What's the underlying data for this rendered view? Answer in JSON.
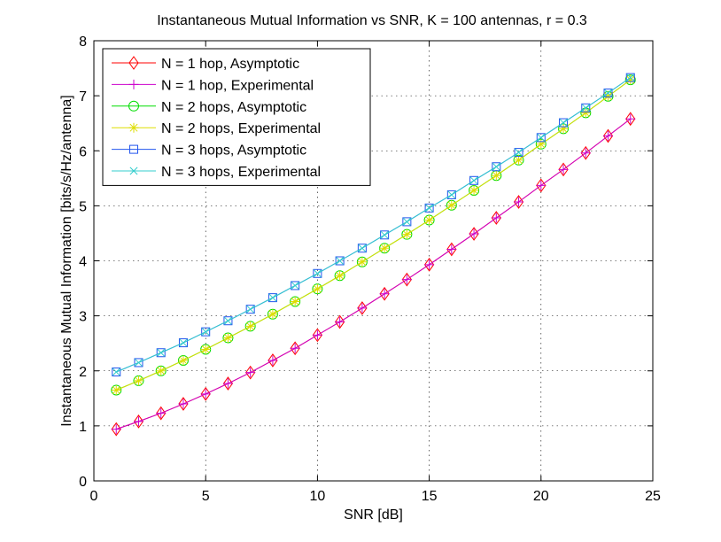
{
  "chart_data": {
    "type": "line",
    "title": "Instantaneous Mutual Information vs SNR, K = 100 antennas, r = 0.3",
    "xlabel": "SNR [dB]",
    "ylabel": "Instantaneous Mutual Information [bits/s/Hz/antenna]",
    "xlim": [
      0,
      25
    ],
    "ylim": [
      0,
      8
    ],
    "xticks": [
      0,
      5,
      10,
      15,
      20,
      25
    ],
    "yticks": [
      0,
      1,
      2,
      3,
      4,
      5,
      6,
      7,
      8
    ],
    "grid": true,
    "legend_position": "top-left",
    "x": [
      1,
      2,
      3,
      4,
      5,
      6,
      7,
      8,
      9,
      10,
      11,
      12,
      13,
      14,
      15,
      16,
      17,
      18,
      19,
      20,
      21,
      22,
      23,
      24
    ],
    "series": [
      {
        "name": "N = 1 hop, Asymptotic",
        "color": "#ff0000",
        "marker": "diamond",
        "values": [
          0.94,
          1.08,
          1.23,
          1.4,
          1.58,
          1.77,
          1.97,
          2.19,
          2.41,
          2.65,
          2.89,
          3.14,
          3.4,
          3.66,
          3.93,
          4.21,
          4.49,
          4.78,
          5.07,
          5.37,
          5.66,
          5.96,
          6.27,
          6.58
        ]
      },
      {
        "name": "N = 1 hop, Experimental",
        "color": "#cc00cc",
        "marker": "plus",
        "values": [
          0.94,
          1.08,
          1.23,
          1.4,
          1.58,
          1.77,
          1.97,
          2.19,
          2.41,
          2.65,
          2.89,
          3.14,
          3.4,
          3.66,
          3.93,
          4.21,
          4.49,
          4.78,
          5.07,
          5.37,
          5.66,
          5.96,
          6.27,
          6.58
        ]
      },
      {
        "name": "N = 2 hops, Asymptotic",
        "color": "#00dd00",
        "marker": "circle",
        "values": [
          1.65,
          1.82,
          2.0,
          2.19,
          2.39,
          2.6,
          2.81,
          3.03,
          3.26,
          3.49,
          3.73,
          3.98,
          4.23,
          4.48,
          4.74,
          5.01,
          5.28,
          5.55,
          5.83,
          6.12,
          6.4,
          6.69,
          6.99,
          7.29
        ]
      },
      {
        "name": "N = 2 hops, Experimental",
        "color": "#dddd00",
        "marker": "star",
        "values": [
          1.65,
          1.82,
          2.0,
          2.19,
          2.39,
          2.6,
          2.81,
          3.03,
          3.26,
          3.49,
          3.73,
          3.98,
          4.23,
          4.48,
          4.74,
          5.01,
          5.28,
          5.55,
          5.83,
          6.12,
          6.4,
          6.69,
          6.99,
          7.29
        ]
      },
      {
        "name": "N = 3 hops, Asymptotic",
        "color": "#2255ee",
        "marker": "square",
        "values": [
          1.98,
          2.15,
          2.33,
          2.51,
          2.71,
          2.91,
          3.12,
          3.33,
          3.55,
          3.77,
          4.0,
          4.23,
          4.47,
          4.71,
          4.96,
          5.2,
          5.46,
          5.71,
          5.97,
          6.24,
          6.51,
          6.78,
          7.05,
          7.33
        ]
      },
      {
        "name": "N = 3 hops, Experimental",
        "color": "#33cccc",
        "marker": "x",
        "values": [
          1.98,
          2.15,
          2.33,
          2.51,
          2.71,
          2.91,
          3.12,
          3.33,
          3.55,
          3.77,
          4.0,
          4.23,
          4.47,
          4.71,
          4.96,
          5.2,
          5.46,
          5.71,
          5.97,
          6.24,
          6.51,
          6.78,
          7.05,
          7.33
        ]
      }
    ]
  }
}
